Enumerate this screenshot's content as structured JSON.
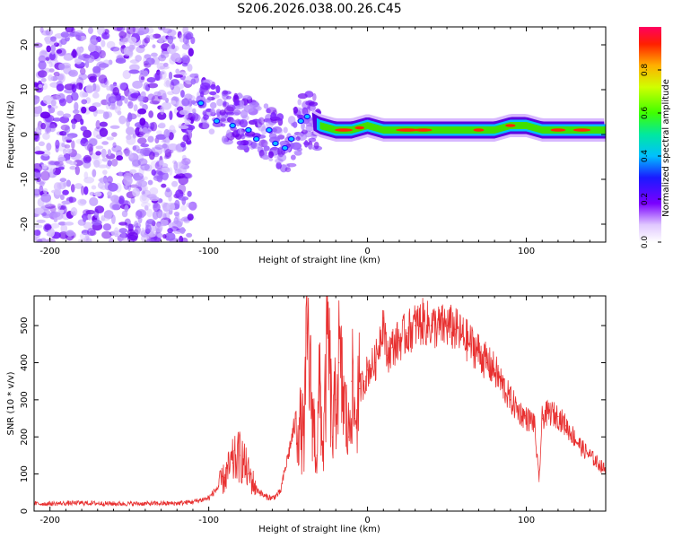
{
  "title": "S206.2026.038.00.26.C45",
  "chart_data": [
    {
      "type": "heatmap",
      "name": "spectrogram",
      "xlabel": "Height of straight line (km)",
      "ylabel": "Frequency (Hz)",
      "xlim": [
        -210,
        150
      ],
      "ylim": [
        -24,
        24
      ],
      "xticks": [
        -200,
        -100,
        0,
        100
      ],
      "yticks": [
        -20,
        -10,
        0,
        10,
        20
      ],
      "ridge": {
        "x": [
          -110,
          -100,
          -90,
          -80,
          -70,
          -60,
          -55,
          -50,
          -45,
          -40,
          -35,
          -30,
          -20,
          -10,
          0,
          10,
          20,
          30,
          40,
          50,
          60,
          70,
          80,
          90,
          100,
          110,
          120,
          130,
          140,
          150
        ],
        "y": [
          8,
          6,
          4,
          3,
          2,
          0,
          -2,
          -3,
          0,
          4,
          3,
          2,
          1,
          1,
          2,
          1,
          1,
          1,
          1,
          1,
          1,
          1,
          1,
          2,
          2,
          1,
          1,
          1,
          1,
          1
        ]
      },
      "colorbar": {
        "label": "Normalized spectral amplitude",
        "min": 0.0,
        "max": 1.0,
        "ticks": [
          0.0,
          0.2,
          0.4,
          0.6,
          0.8
        ]
      }
    },
    {
      "type": "line",
      "name": "snr",
      "color": "#e83030",
      "xlabel": "Height of straight line (km)",
      "ylabel": "SNR (10 * v/v)",
      "xlim": [
        -210,
        150
      ],
      "ylim": [
        0,
        580
      ],
      "xticks": [
        -200,
        -100,
        0,
        100
      ],
      "yticks": [
        0,
        100,
        200,
        300,
        400,
        500
      ],
      "x": [
        -210,
        -200,
        -180,
        -160,
        -140,
        -120,
        -110,
        -100,
        -95,
        -90,
        -85,
        -80,
        -75,
        -70,
        -65,
        -60,
        -55,
        -50,
        -45,
        -40,
        -38,
        -35,
        -32,
        -30,
        -28,
        -25,
        -22,
        -20,
        -18,
        -15,
        -12,
        -10,
        -8,
        -5,
        -2,
        0,
        5,
        10,
        12,
        15,
        20,
        25,
        30,
        35,
        40,
        45,
        50,
        55,
        60,
        65,
        70,
        75,
        80,
        85,
        90,
        95,
        100,
        105,
        108,
        110,
        112,
        115,
        120,
        125,
        130,
        135,
        140,
        145,
        150
      ],
      "y": [
        20,
        20,
        22,
        20,
        20,
        21,
        25,
        35,
        60,
        90,
        130,
        150,
        100,
        60,
        40,
        35,
        50,
        150,
        250,
        200,
        480,
        280,
        150,
        350,
        150,
        480,
        200,
        300,
        400,
        300,
        200,
        350,
        250,
        330,
        350,
        380,
        400,
        520,
        420,
        440,
        460,
        480,
        500,
        510,
        500,
        495,
        500,
        490,
        470,
        450,
        430,
        400,
        380,
        340,
        300,
        270,
        250,
        240,
        80,
        250,
        260,
        265,
        255,
        230,
        200,
        170,
        150,
        130,
        110
      ]
    }
  ]
}
